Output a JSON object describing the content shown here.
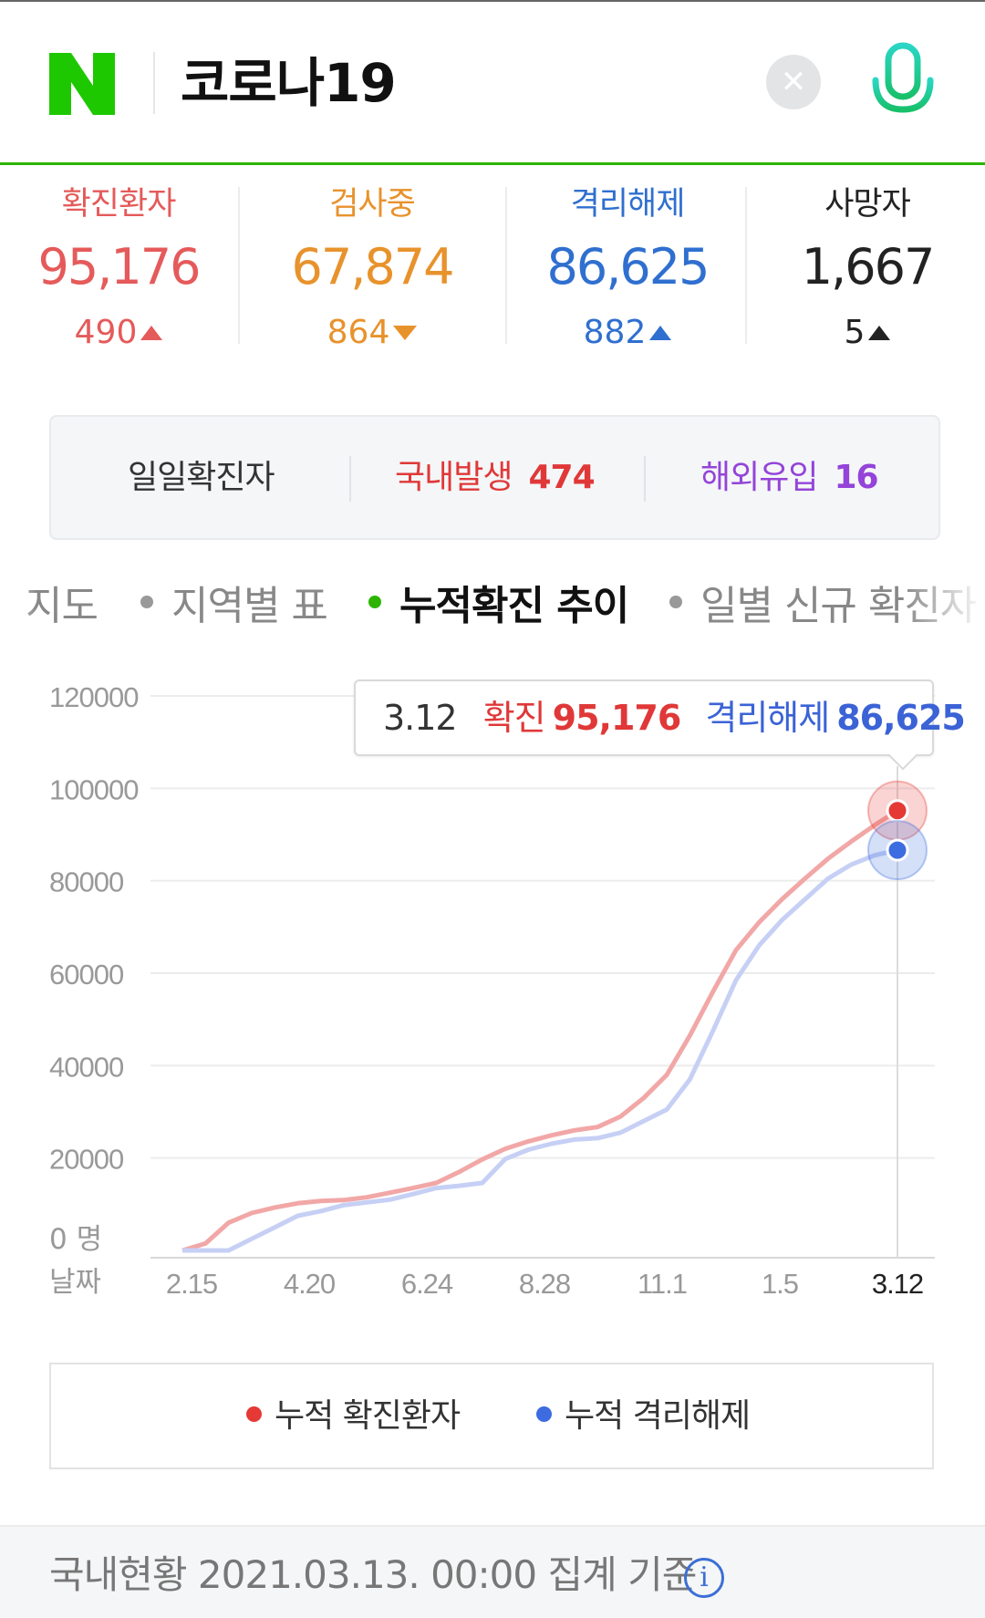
{
  "search": {
    "logo_letter": "N",
    "query": "코로나19",
    "clear_icon": "close-icon",
    "mic_icon": "microphone-icon"
  },
  "stats": [
    {
      "label": "확진환자",
      "value": "95,176",
      "delta": "490",
      "trend": "up",
      "color": "#e55a5a"
    },
    {
      "label": "검사중",
      "value": "67,874",
      "delta": "864",
      "trend": "down",
      "color": "#e8922c"
    },
    {
      "label": "격리해제",
      "value": "86,625",
      "delta": "882",
      "trend": "up",
      "color": "#2f6fcf"
    },
    {
      "label": "사망자",
      "value": "1,667",
      "delta": "5",
      "trend": "up",
      "color": "#222222"
    }
  ],
  "daily": {
    "label": "일일확진자",
    "domestic_label": "국내발생",
    "domestic_value": "474",
    "overseas_label": "해외유입",
    "overseas_value": "16"
  },
  "tabs": [
    {
      "label": "지도",
      "active": false
    },
    {
      "label": "지역별 표",
      "active": false
    },
    {
      "label": "누적확진 추이",
      "active": true
    },
    {
      "label": "일별 신규 확진자",
      "active": false
    }
  ],
  "tooltip": {
    "date": "3.12",
    "confirmed_label": "확진",
    "confirmed_value": "95,176",
    "released_label": "격리해제",
    "released_value": "86,625"
  },
  "chart_data": {
    "type": "line",
    "xlabel": "날짜",
    "y_zero_label": "0 명",
    "y_ticks": [
      "120000",
      "100000",
      "80000",
      "60000",
      "40000",
      "20000"
    ],
    "ylim": [
      0,
      120000
    ],
    "x_tick_labels": [
      "2.15",
      "4.20",
      "6.24",
      "8.28",
      "11.1",
      "1.5",
      "3.12"
    ],
    "x": [
      "2.15",
      "2.25",
      "3.5",
      "3.15",
      "3.25",
      "4.5",
      "4.20",
      "5.10",
      "6.1",
      "6.24",
      "7.15",
      "8.10",
      "8.20",
      "8.28",
      "9.10",
      "9.25",
      "10.10",
      "10.25",
      "11.1",
      "11.15",
      "11.25",
      "12.5",
      "12.15",
      "12.25",
      "1.5",
      "1.15",
      "1.25",
      "2.5",
      "2.15",
      "2.25",
      "3.5",
      "3.12"
    ],
    "series": [
      {
        "name": "누적 확진환자",
        "color": "#f2a7a7",
        "values": [
          0,
          1500,
          6000,
          8100,
          9300,
          10200,
          10700,
          10900,
          11500,
          12500,
          13500,
          14600,
          17000,
          19700,
          22000,
          23600,
          24900,
          26000,
          26700,
          29000,
          33000,
          38000,
          46500,
          56000,
          65000,
          71000,
          76000,
          80500,
          84800,
          88500,
          92000,
          95176
        ]
      },
      {
        "name": "누적 격리해제",
        "color": "#c6d0f5",
        "values": [
          0,
          0,
          0,
          2500,
          5000,
          7500,
          8500,
          9800,
          10400,
          11000,
          12200,
          13500,
          14000,
          14600,
          19800,
          21800,
          23100,
          24000,
          24300,
          25500,
          28000,
          30500,
          37000,
          47500,
          58500,
          66000,
          71500,
          76000,
          80500,
          83500,
          85500,
          86625
        ]
      }
    ],
    "highlight_index": 31,
    "highlight_colors": {
      "confirmed": "#e53935",
      "released": "#3d6ce0"
    }
  },
  "legend": {
    "confirmed_label": "누적 확진환자",
    "confirmed_color": "#e53935",
    "released_label": "누적 격리해제",
    "released_color": "#3d6ce0"
  },
  "footer": {
    "text": "국내현황 2021.03.13. 00:00 집계 기준",
    "info_icon": "info-icon"
  }
}
